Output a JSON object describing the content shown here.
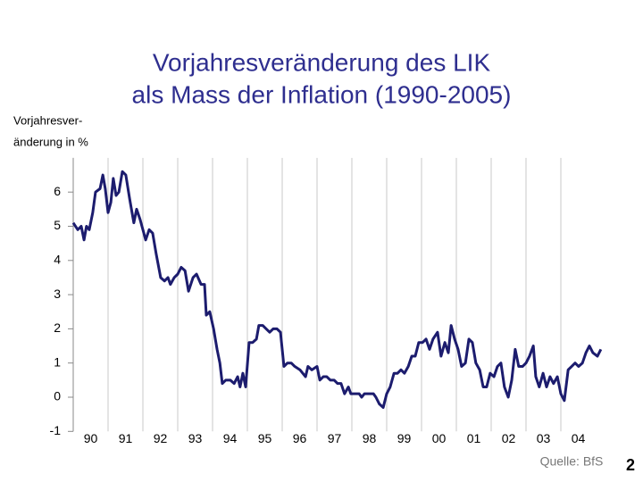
{
  "chart_data": {
    "type": "line",
    "title": [
      "Vorjahresveränderung des LIK",
      "als Mass der Inflation (1990-2005)"
    ],
    "ylabel": [
      "Vorjahresver-",
      "änderung in %"
    ],
    "source": "Quelle: BfS",
    "page_number": "2",
    "color": "#1c1c6e",
    "grid": true,
    "xlim": [
      1990,
      2005.25
    ],
    "xticks": [
      {
        "value": 1990,
        "label": "90"
      },
      {
        "value": 1991,
        "label": "91"
      },
      {
        "value": 1992,
        "label": "92"
      },
      {
        "value": 1993,
        "label": "93"
      },
      {
        "value": 1994,
        "label": "94"
      },
      {
        "value": 1995,
        "label": "95"
      },
      {
        "value": 1996,
        "label": "96"
      },
      {
        "value": 1997,
        "label": "97"
      },
      {
        "value": 1998,
        "label": "98"
      },
      {
        "value": 1999,
        "label": "99"
      },
      {
        "value": 2000,
        "label": "00"
      },
      {
        "value": 2001,
        "label": "01"
      },
      {
        "value": 2002,
        "label": "02"
      },
      {
        "value": 2003,
        "label": "03"
      },
      {
        "value": 2004,
        "label": "04"
      }
    ],
    "ylim": [
      -1,
      7
    ],
    "yticks": [
      -1,
      0,
      1,
      2,
      3,
      4,
      5,
      6
    ],
    "x": [
      1990.0,
      1990.13,
      1990.23,
      1990.31,
      1990.38,
      1990.46,
      1990.56,
      1990.64,
      1990.77,
      1990.85,
      1990.92,
      1991.0,
      1991.08,
      1991.15,
      1991.23,
      1991.31,
      1991.41,
      1991.51,
      1991.62,
      1991.74,
      1991.82,
      1991.92,
      1992.08,
      1992.18,
      1992.28,
      1992.38,
      1992.51,
      1992.62,
      1992.72,
      1992.79,
      1992.9,
      1993.0,
      1993.1,
      1993.21,
      1993.31,
      1993.44,
      1993.54,
      1993.67,
      1993.77,
      1993.82,
      1993.92,
      1994.03,
      1994.13,
      1994.21,
      1994.28,
      1994.38,
      1994.51,
      1994.62,
      1994.72,
      1994.79,
      1994.87,
      1994.95,
      1995.05,
      1995.15,
      1995.26,
      1995.33,
      1995.44,
      1995.54,
      1995.64,
      1995.74,
      1995.85,
      1995.95,
      1996.05,
      1996.15,
      1996.26,
      1996.36,
      1996.51,
      1996.67,
      1996.74,
      1996.85,
      1997.0,
      1997.08,
      1997.18,
      1997.28,
      1997.38,
      1997.49,
      1997.59,
      1997.69,
      1997.79,
      1997.9,
      1997.97,
      1998.08,
      1998.21,
      1998.28,
      1998.36,
      1998.49,
      1998.62,
      1998.69,
      1998.79,
      1998.9,
      1999.0,
      1999.1,
      1999.21,
      1999.31,
      1999.41,
      1999.51,
      1999.62,
      1999.72,
      1999.82,
      1999.92,
      2000.03,
      2000.13,
      2000.23,
      2000.33,
      2000.46,
      2000.56,
      2000.67,
      2000.77,
      2000.85,
      2000.95,
      2001.05,
      2001.15,
      2001.26,
      2001.36,
      2001.46,
      2001.56,
      2001.67,
      2001.77,
      2001.87,
      2001.97,
      2002.08,
      2002.18,
      2002.28,
      2002.38,
      2002.49,
      2002.59,
      2002.69,
      2002.79,
      2002.9,
      2003.0,
      2003.1,
      2003.21,
      2003.28,
      2003.38,
      2003.49,
      2003.59,
      2003.69,
      2003.79,
      2003.9,
      2004.0,
      2004.1,
      2004.21,
      2004.31,
      2004.41,
      2004.51,
      2004.62,
      2004.72,
      2004.82,
      2004.92,
      2005.05,
      2005.15
    ],
    "values": [
      5.1,
      4.9,
      5.0,
      4.6,
      5.0,
      4.9,
      5.4,
      6.0,
      6.1,
      6.5,
      6.1,
      5.4,
      5.7,
      6.4,
      5.9,
      6.0,
      6.6,
      6.5,
      5.8,
      5.1,
      5.5,
      5.2,
      4.6,
      4.9,
      4.8,
      4.2,
      3.5,
      3.4,
      3.5,
      3.3,
      3.5,
      3.6,
      3.8,
      3.7,
      3.1,
      3.5,
      3.6,
      3.3,
      3.3,
      2.4,
      2.5,
      2.0,
      1.4,
      1.0,
      0.4,
      0.5,
      0.5,
      0.4,
      0.6,
      0.3,
      0.7,
      0.3,
      1.6,
      1.6,
      1.7,
      2.1,
      2.1,
      2.0,
      1.9,
      2.0,
      2.0,
      1.9,
      0.9,
      1.0,
      1.0,
      0.9,
      0.8,
      0.6,
      0.9,
      0.8,
      0.9,
      0.5,
      0.6,
      0.6,
      0.5,
      0.5,
      0.4,
      0.4,
      0.1,
      0.3,
      0.1,
      0.1,
      0.1,
      0.0,
      0.1,
      0.1,
      0.1,
      0.0,
      -0.2,
      -0.3,
      0.1,
      0.3,
      0.7,
      0.7,
      0.8,
      0.7,
      0.9,
      1.2,
      1.2,
      1.6,
      1.6,
      1.7,
      1.4,
      1.7,
      1.9,
      1.2,
      1.6,
      1.3,
      2.1,
      1.7,
      1.4,
      0.9,
      1.0,
      1.7,
      1.6,
      1.0,
      0.8,
      0.3,
      0.3,
      0.7,
      0.6,
      0.9,
      1.0,
      0.3,
      0.0,
      0.5,
      1.4,
      0.9,
      0.9,
      1.0,
      1.2,
      1.5,
      0.6,
      0.3,
      0.7,
      0.3,
      0.6,
      0.4,
      0.6,
      0.1,
      -0.1,
      0.8,
      0.9,
      1.0,
      0.9,
      1.0,
      1.3,
      1.5,
      1.3,
      1.2,
      1.4
    ]
  }
}
